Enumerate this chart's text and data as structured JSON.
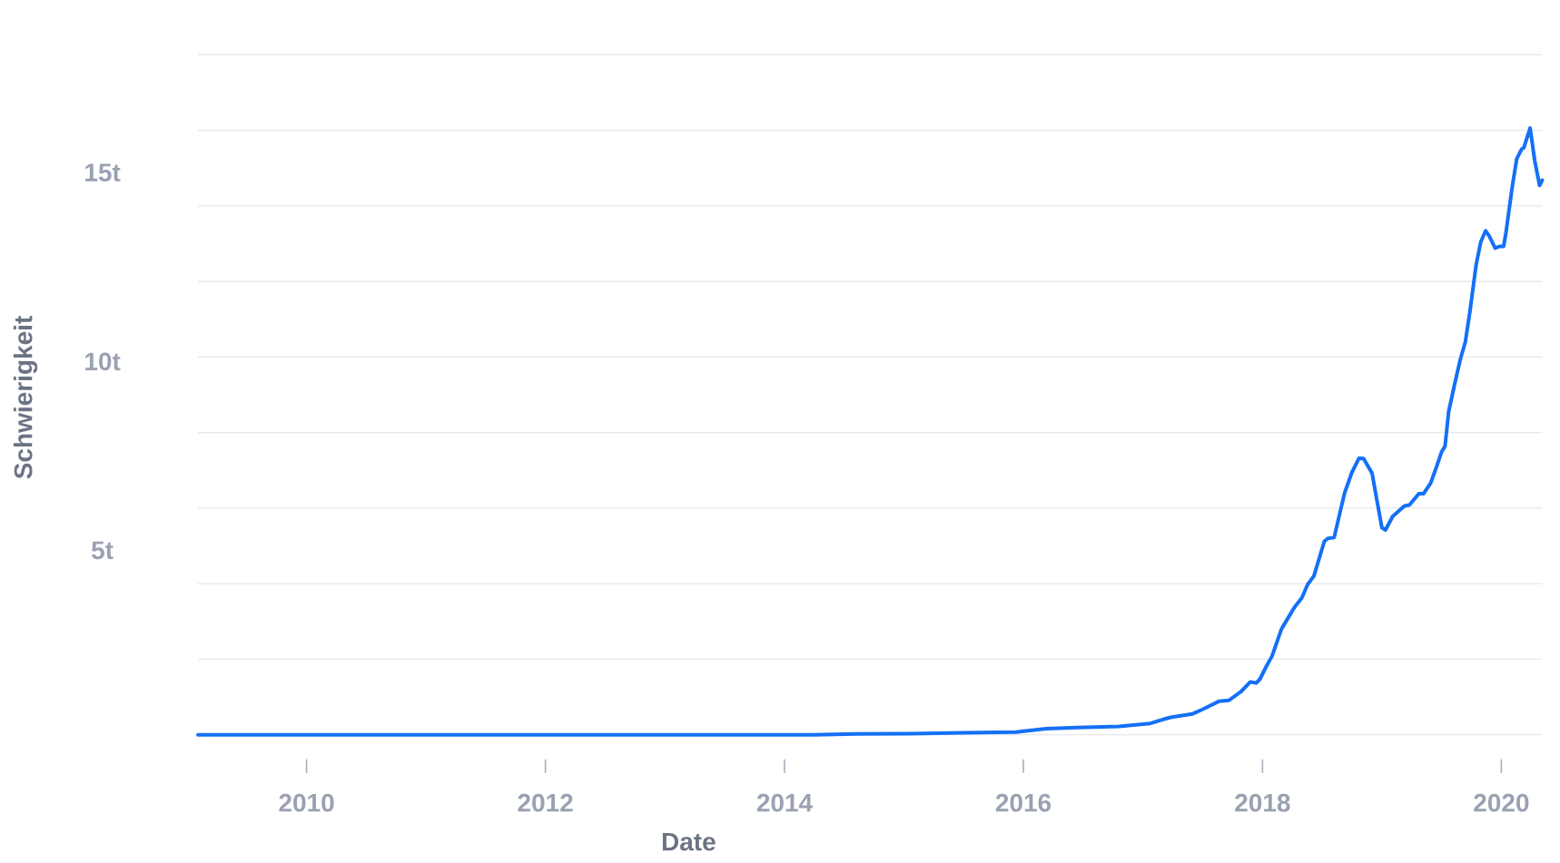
{
  "chart_data": {
    "type": "line",
    "xlabel": "Date",
    "ylabel": "Schwierigkeit",
    "x": [
      "2009-02-03",
      "2011-01-01",
      "2013-01-01",
      "2014-04-01",
      "2014-08-08",
      "2015-01-12",
      "2015-07-01",
      "2015-12-09",
      "2016-03-10",
      "2016-06-13",
      "2016-10-19",
      "2017-01-23",
      "2017-03-01",
      "2017-03-26",
      "2017-05-31",
      "2017-07-06",
      "2017-08-22",
      "2017-09-20",
      "2017-10-27",
      "2017-11-25",
      "2017-12-13",
      "2017-12-24",
      "2018-01-12",
      "2018-01-30",
      "2018-02-28",
      "2018-04-09",
      "2018-05-01",
      "2018-05-19",
      "2018-06-07",
      "2018-07-09",
      "2018-07-20",
      "2018-08-08",
      "2018-08-29",
      "2018-09-09",
      "2018-10-01",
      "2018-10-23",
      "2018-11-06",
      "2018-12-02",
      "2018-12-16",
      "2019-01-01",
      "2019-01-12",
      "2019-02-03",
      "2019-03-11",
      "2019-03-26",
      "2019-04-24",
      "2019-05-08",
      "2019-05-30",
      "2019-06-18",
      "2019-07-02",
      "2019-07-13",
      "2019-07-24",
      "2019-08-11",
      "2019-08-29",
      "2019-09-13",
      "2019-09-27",
      "2019-10-16",
      "2019-10-30",
      "2019-11-14",
      "2019-11-25",
      "2019-12-13",
      "2019-12-28",
      "2020-01-08",
      "2020-01-15",
      "2020-02-03",
      "2020-02-17",
      "2020-03-03",
      "2020-03-10",
      "2020-03-29",
      "2020-04-12",
      "2020-04-27",
      "2020-05-05"
    ],
    "series": [
      {
        "color": "#1470f5",
        "values": [
          0,
          0,
          0,
          0,
          0.02,
          0.03,
          0.05,
          0.07,
          0.16,
          0.19,
          0.22,
          0.3,
          0.4,
          0.46,
          0.55,
          0.69,
          0.89,
          0.91,
          1.14,
          1.4,
          1.37,
          1.47,
          1.8,
          2.08,
          2.8,
          3.38,
          3.62,
          3.98,
          4.2,
          5.12,
          5.2,
          5.22,
          6.0,
          6.4,
          6.94,
          7.32,
          7.31,
          6.92,
          6.24,
          5.48,
          5.42,
          5.78,
          6.06,
          6.08,
          6.38,
          6.38,
          6.66,
          7.12,
          7.48,
          7.64,
          8.55,
          9.27,
          9.95,
          10.4,
          11.2,
          12.44,
          13.04,
          13.34,
          13.2,
          12.88,
          12.93,
          12.93,
          13.28,
          14.48,
          15.24,
          15.5,
          15.54,
          16.06,
          15.2,
          14.54,
          14.68
        ]
      }
    ],
    "xlim": [
      "2009-02-03",
      "2020-05-05"
    ],
    "ylim": [
      0,
      18
    ],
    "xticks": [
      {
        "value": "2010",
        "label": "2010"
      },
      {
        "value": "2012",
        "label": "2012"
      },
      {
        "value": "2014",
        "label": "2014"
      },
      {
        "value": "2016",
        "label": "2016"
      },
      {
        "value": "2018",
        "label": "2018"
      },
      {
        "value": "2020",
        "label": "2020"
      }
    ],
    "yticks": [
      {
        "value": 0,
        "label": null
      },
      {
        "value": 2,
        "label": null
      },
      {
        "value": 4,
        "label": null
      },
      {
        "value": 5,
        "label": "5t"
      },
      {
        "value": 6,
        "label": null
      },
      {
        "value": 8,
        "label": null
      },
      {
        "value": 10,
        "label": null
      },
      {
        "value": 10,
        "label": "10t"
      },
      {
        "value": 12,
        "label": null
      },
      {
        "value": 14,
        "label": null
      },
      {
        "value": 15,
        "label": "15t"
      },
      {
        "value": 16,
        "label": null
      },
      {
        "value": 18,
        "label": null
      }
    ],
    "grid": "y"
  }
}
